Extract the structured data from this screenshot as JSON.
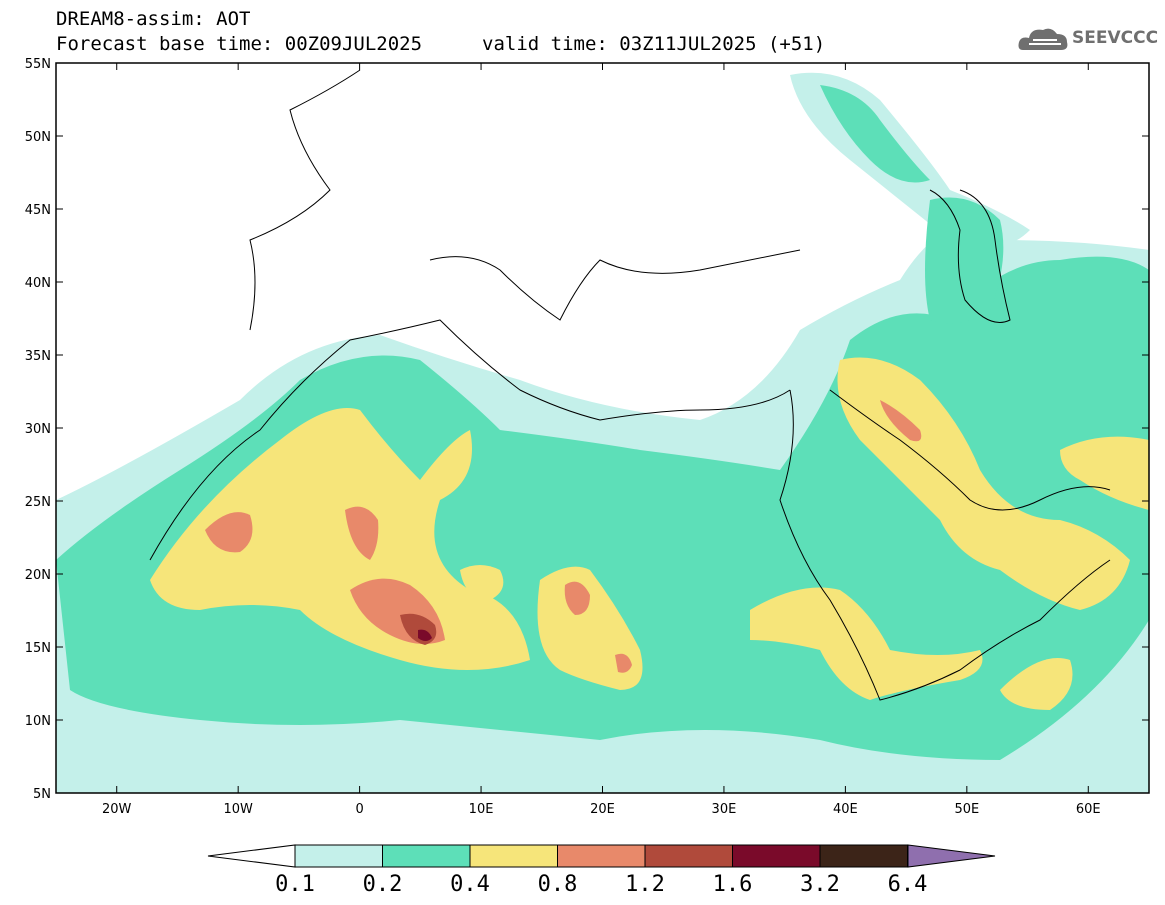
{
  "header": {
    "title": "DREAM8-assim: AOT",
    "forecast_base": "Forecast base time: 00Z09JUL2025",
    "valid_time": "valid time: 03Z11JUL2025 (+51)",
    "logo_text": "SEEVCCC"
  },
  "map": {
    "extent": {
      "lon": [
        -25,
        65
      ],
      "lat": [
        5,
        55
      ]
    },
    "lat_ticks": [
      "55N",
      "50N",
      "45N",
      "40N",
      "35N",
      "30N",
      "25N",
      "20N",
      "15N",
      "10N",
      "5N"
    ],
    "lon_ticks": [
      "20W",
      "10W",
      "0",
      "10E",
      "20E",
      "30E",
      "40E",
      "50E",
      "60E"
    ],
    "field": "AOT"
  },
  "colorbar": {
    "labels": [
      "0.1",
      "0.2",
      "0.4",
      "0.8",
      "1.2",
      "1.6",
      "3.2",
      "6.4"
    ],
    "colors": [
      "#c4f0ea",
      "#5ddfb8",
      "#f6e57a",
      "#e8896a",
      "#b04a3b",
      "#7a0a2a",
      "#3c2418",
      "#8f6fae"
    ]
  }
}
